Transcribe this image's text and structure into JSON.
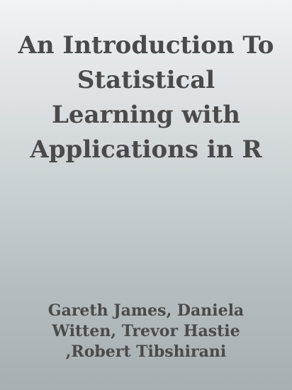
{
  "cover": {
    "title_lines": [
      "An Introduction To",
      "Statistical",
      "Learning with",
      "Applications in R"
    ],
    "author_lines": [
      "Gareth James, Daniela",
      "Witten, Trevor Hastie",
      ",Robert Tibshirani"
    ],
    "colors": {
      "text": "#4a4a4a",
      "gradient_top": "#f2f3f4",
      "gradient_bottom": "#a7afb3"
    }
  }
}
